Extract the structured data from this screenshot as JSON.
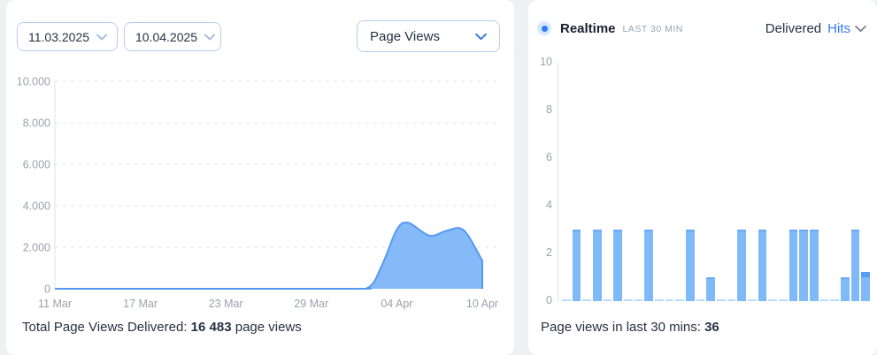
{
  "colors": {
    "page_bg": "#eef0f4",
    "card_bg": "#ffffff",
    "accent_blue": "#2e7cf6",
    "area_fill": "#85baf8",
    "area_stroke": "#5598f0",
    "bar_fill": "#7fb9f8",
    "bar_cap": "#559ef2",
    "bar_zero": "#b9dafb",
    "axis_text": "#9aa1ad",
    "grid": "#e0e3e8",
    "text_dark": "#273142",
    "border_blue": "#b6cdf1",
    "muted": "#9aa3ae",
    "dot_halo": "#d7e7fd",
    "chev_date": "#9db8dd",
    "chev_select": "#3b76e0",
    "chev_hits": "#6b7687"
  },
  "left_panel": {
    "controls": {
      "date_from": "11.03.2025",
      "date_to": "10.04.2025",
      "metric_select": "Page Views"
    },
    "summary": {
      "prefix": "Total Page Views Delivered: ",
      "value": "16 483",
      "suffix": " page views"
    },
    "chart_data": {
      "type": "area",
      "title": "Page Views over date range",
      "x_ticks": [
        "11 Mar",
        "17 Mar",
        "23 Mar",
        "29 Mar",
        "04 Apr",
        "10 Apr"
      ],
      "y_ticks": [
        "10.000",
        "8.000",
        "6.000",
        "4.000",
        "2.000",
        "0"
      ],
      "ylim": [
        0,
        10000
      ],
      "days_total": 30,
      "grid": "dashed-horizontal",
      "points": [
        {
          "day": 0,
          "value": 0
        },
        {
          "day": 20,
          "value": 0
        },
        {
          "day": 22,
          "value": 60
        },
        {
          "day": 23,
          "value": 1200
        },
        {
          "day": 24,
          "value": 2850
        },
        {
          "day": 24.8,
          "value": 3180
        },
        {
          "day": 26.3,
          "value": 2560
        },
        {
          "day": 27.5,
          "value": 2800
        },
        {
          "day": 28.7,
          "value": 2820
        },
        {
          "day": 30,
          "value": 1350
        }
      ],
      "total": 16483
    }
  },
  "right_panel": {
    "header": {
      "title": "Realtime",
      "subtitle": "LAST 30 MIN",
      "toggle_static": "Delivered",
      "toggle_active": "Hits"
    },
    "summary": {
      "prefix": "Page views in last 30 mins: ",
      "value": "36"
    },
    "chart_data": {
      "type": "bar",
      "title": "Page views per minute, last 30 minutes",
      "y_ticks": [
        "10",
        "8",
        "6",
        "4",
        "2",
        "0"
      ],
      "ylim": [
        0,
        10
      ],
      "minutes": 30,
      "values": [
        0,
        3,
        0,
        3,
        0,
        3,
        0,
        0,
        3,
        0,
        0,
        0,
        3,
        0,
        1,
        0,
        0,
        3,
        0,
        3,
        0,
        0,
        3,
        3,
        3,
        0,
        0,
        1,
        3,
        1
      ],
      "current_minute_cap": true,
      "total": 36
    }
  }
}
